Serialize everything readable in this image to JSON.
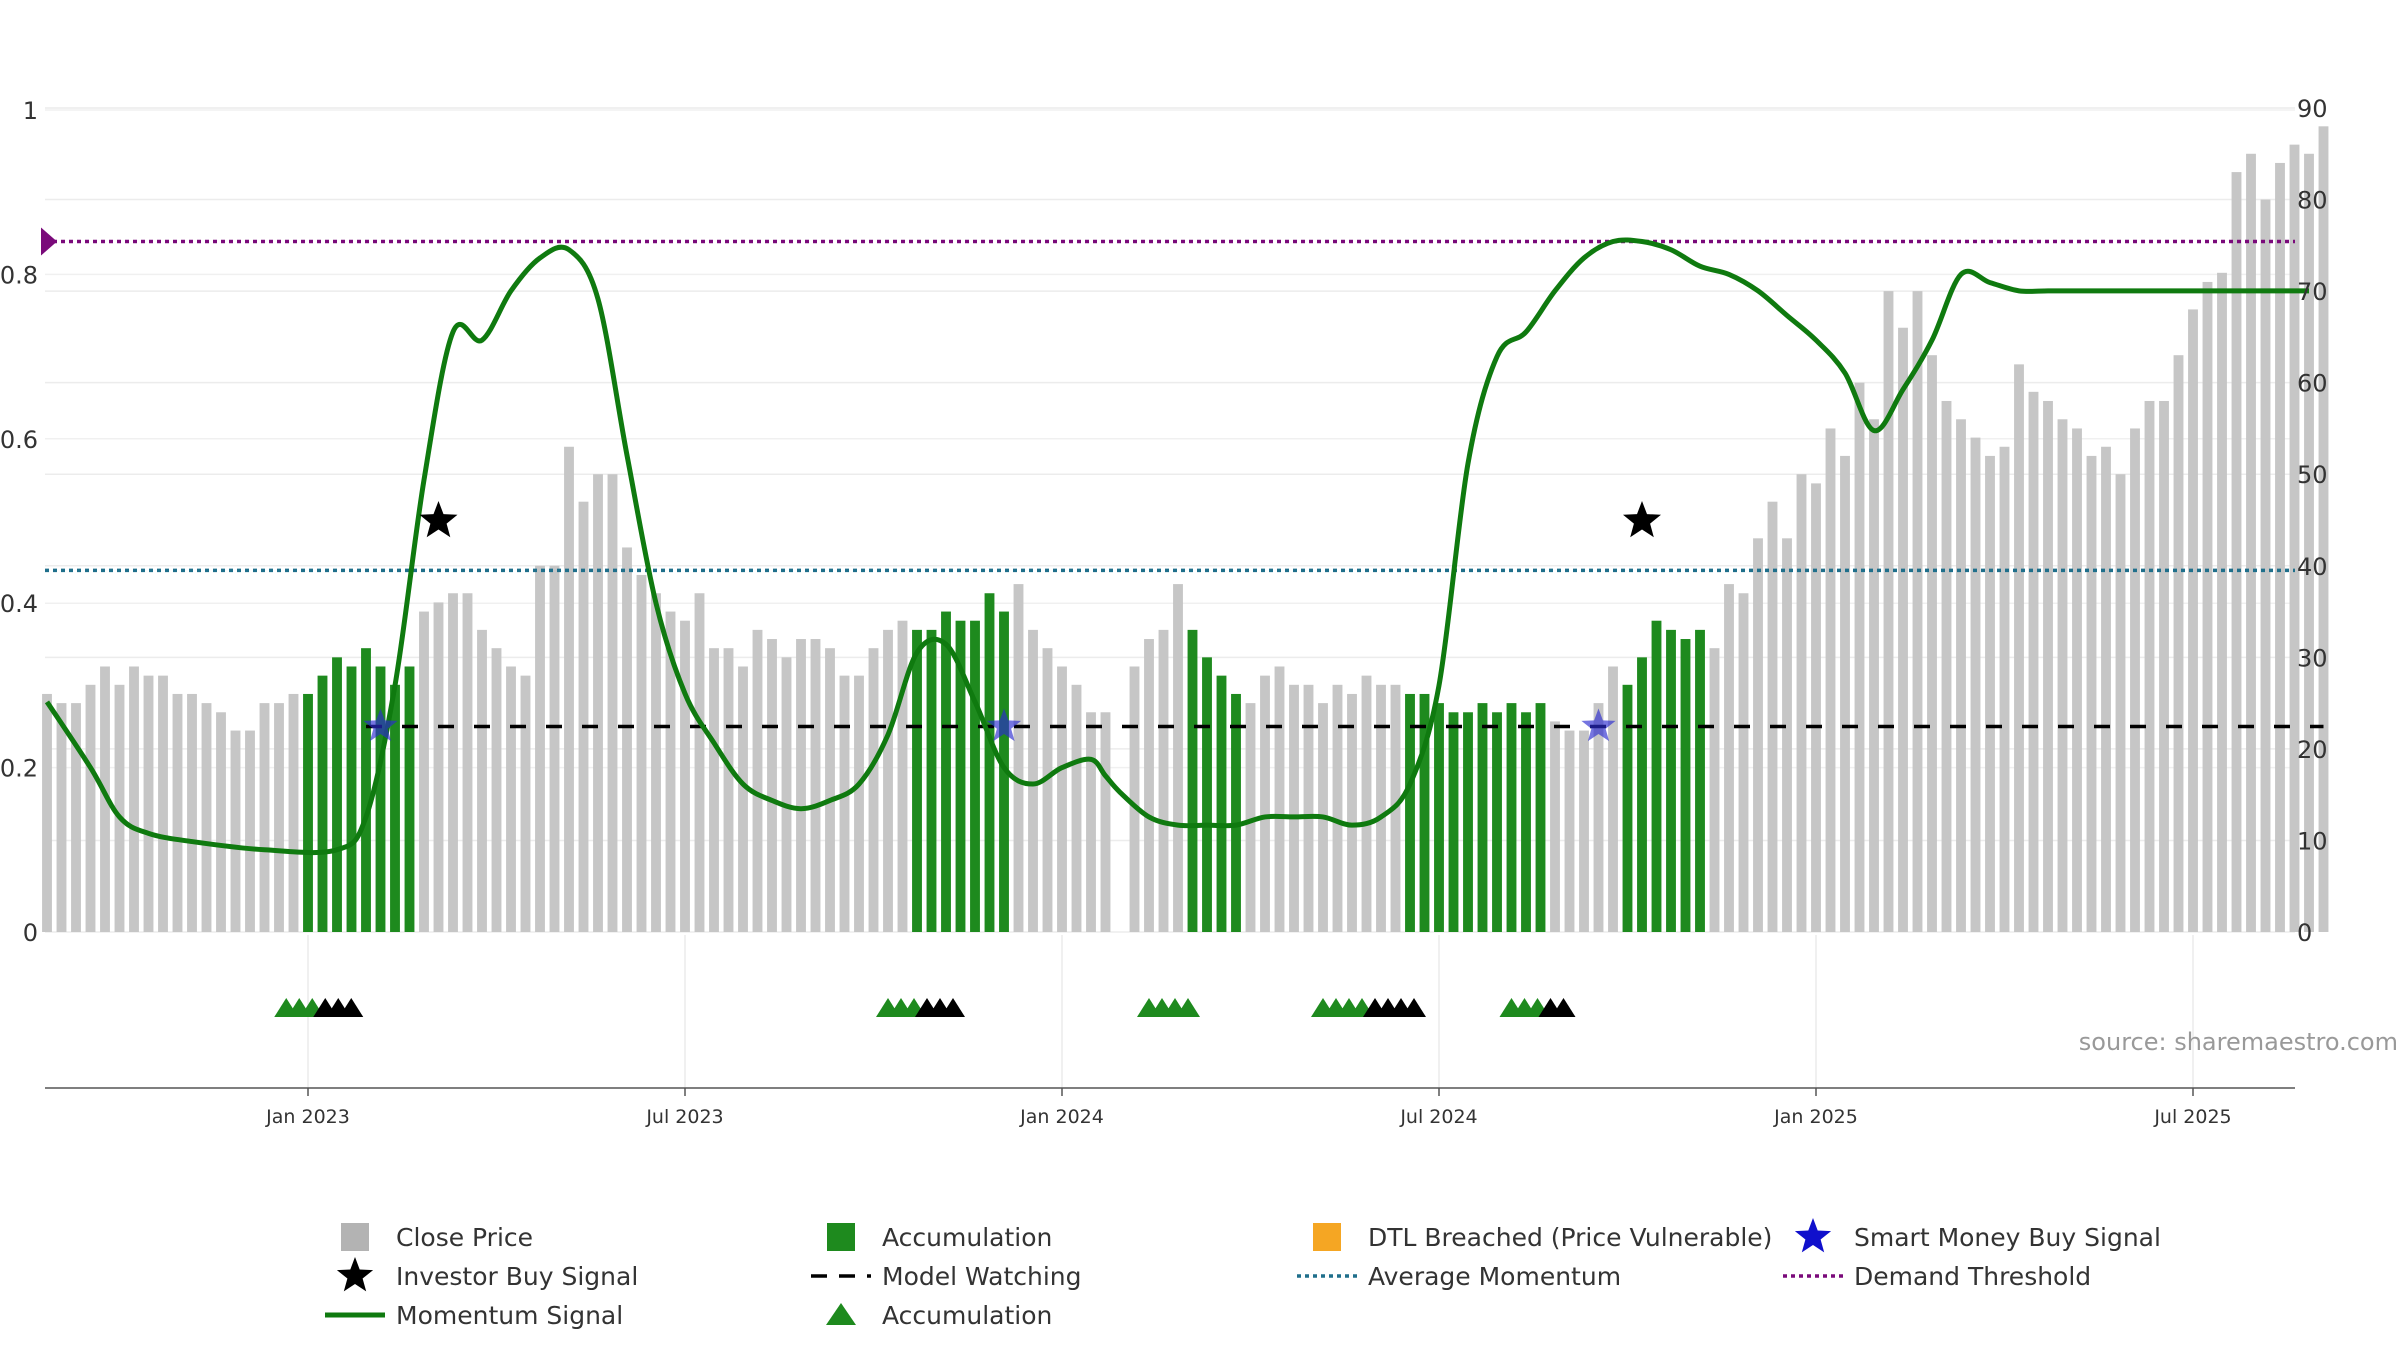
{
  "source_text": "source: sharemaestro.com",
  "legend": [
    {
      "label": "Close Price",
      "icon": "square-icon",
      "color": "#b3b3b3"
    },
    {
      "label": "Accumulation",
      "icon": "square-icon",
      "color": "#1e8a1e"
    },
    {
      "label": "DTL Breached (Price Vulnerable)",
      "icon": "square-icon",
      "color": "#f5a623"
    },
    {
      "label": "Smart Money Buy Signal",
      "icon": "star-icon",
      "color": "#1010cc"
    },
    {
      "label": "Investor Buy Signal",
      "icon": "star-icon",
      "color": "#000000"
    },
    {
      "label": "Model Watching",
      "icon": "dash-line-icon",
      "color": "#000000"
    },
    {
      "label": "Average Momentum",
      "icon": "dotted-line-icon",
      "color": "#1f6f8b"
    },
    {
      "label": "Demand Threshold",
      "icon": "dotted-line-icon",
      "color": "#7a0a7a"
    },
    {
      "label": "Momentum Signal",
      "icon": "solid-line-icon",
      "color": "#0f7a0f"
    },
    {
      "label": "Accumulation",
      "icon": "triangle-up-icon",
      "color": "#1e8a1e"
    }
  ],
  "chart_data": {
    "type": "bar",
    "x_tick_labels": [
      "Jan 2023",
      "Jul 2023",
      "Jan 2024",
      "Jul 2024",
      "Jan 2025",
      "Jul 2025"
    ],
    "x_tick_weeks": [
      18,
      44,
      70,
      96,
      122,
      148
    ],
    "left_axis": {
      "ticks": [
        0,
        0.2,
        0.4,
        0.6,
        0.8,
        1
      ],
      "tick_labels": [
        "0",
        "0.2",
        "0.4",
        "0.6",
        "0.8",
        "1"
      ],
      "ylim": [
        0,
        1
      ]
    },
    "right_axis": {
      "ticks": [
        0,
        10,
        20,
        30,
        40,
        50,
        60,
        70,
        80,
        90
      ],
      "tick_labels": [
        "0",
        "10",
        "20",
        "30",
        "40",
        "50",
        "60",
        "70",
        "80",
        "90"
      ],
      "ylim": [
        0,
        90
      ]
    },
    "grid": true,
    "legend_position": "bottom",
    "colors": {
      "close": "#c6c6c6",
      "accumulation": "#1e8a1e",
      "dtl": "#f9c877",
      "momentum": "#0f7a0f",
      "average": "#1f6f8b",
      "threshold": "#7a0a7a",
      "watching": "#000000",
      "smart_money": "#2b2bd0",
      "investor": "#000000"
    },
    "close_price": [
      26,
      25,
      25,
      27,
      29,
      27,
      29,
      28,
      28,
      26,
      26,
      25,
      24,
      22,
      22,
      25,
      25,
      26,
      26,
      28,
      30,
      29,
      31,
      29,
      27,
      29,
      35,
      36,
      37,
      37,
      33,
      31,
      29,
      28,
      40,
      40,
      53,
      47,
      50,
      50,
      42,
      39,
      37,
      35,
      34,
      37,
      31,
      31,
      29,
      33,
      32,
      30,
      32,
      32,
      31,
      28,
      28,
      31,
      33,
      34,
      33,
      33,
      35,
      34,
      34,
      37,
      35,
      38,
      33,
      31,
      29,
      27,
      24,
      24,
      null,
      29,
      32,
      33,
      38,
      33,
      30,
      28,
      26,
      25,
      28,
      29,
      27,
      27,
      25,
      27,
      26,
      28,
      27,
      27,
      26,
      26,
      25,
      24,
      24,
      25,
      24,
      25,
      24,
      25,
      23,
      22,
      22,
      25,
      29,
      27,
      30,
      34,
      33,
      32,
      33,
      31,
      38,
      37,
      43,
      47,
      43,
      50,
      49,
      55,
      52,
      60,
      56,
      70,
      66,
      70,
      63,
      58,
      56,
      54,
      52,
      53,
      62,
      59,
      58,
      56,
      55,
      52,
      53,
      50,
      55,
      58,
      58,
      63,
      68,
      71,
      72,
      83,
      85,
      80,
      84,
      86,
      85,
      88
    ],
    "bar_category": [
      "c",
      "c",
      "c",
      "c",
      "c",
      "c",
      "c",
      "c",
      "c",
      "c",
      "c",
      "c",
      "c",
      "c",
      "c",
      "c",
      "c",
      "c",
      "a",
      "a",
      "a",
      "a",
      "a",
      "a",
      "a",
      "a",
      "c",
      "c",
      "c",
      "c",
      "c",
      "c",
      "c",
      "c",
      "c",
      "c",
      "c",
      "c",
      "c",
      "c",
      "c",
      "c",
      "c",
      "c",
      "c",
      "c",
      "c",
      "c",
      "c",
      "c",
      "c",
      "c",
      "c",
      "c",
      "c",
      "c",
      "c",
      "c",
      "c",
      "c",
      "a",
      "a",
      "a",
      "a",
      "a",
      "a",
      "a",
      "c",
      "c",
      "c",
      "c",
      "c",
      "c",
      "c",
      "c",
      "c",
      "c",
      "c",
      "c",
      "a",
      "a",
      "a",
      "a",
      "c",
      "c",
      "c",
      "c",
      "c",
      "c",
      "c",
      "c",
      "c",
      "c",
      "c",
      "a",
      "a",
      "a",
      "a",
      "a",
      "a",
      "a",
      "a",
      "a",
      "a",
      "c",
      "c",
      "c",
      "c",
      "c",
      "a",
      "a",
      "a",
      "a",
      "a",
      "a",
      "c",
      "c",
      "c",
      "c",
      "c",
      "c",
      "c",
      "c",
      "c",
      "c",
      "c",
      "c",
      "c",
      "c",
      "c",
      "c",
      "c",
      "c",
      "c",
      "c",
      "c",
      "c",
      "c",
      "c",
      "c",
      "c",
      "c",
      "c",
      "c",
      "c",
      "c",
      "c",
      "c",
      "c",
      "c",
      "c",
      "c",
      "c",
      "c",
      "c",
      "c",
      "c",
      "c",
      "c",
      "d",
      "d",
      "d",
      "d",
      "d",
      "d",
      "d",
      "d"
    ],
    "momentum_series": {
      "x_weeks": [
        0,
        3,
        5,
        7,
        10,
        15,
        20,
        22,
        24,
        26,
        28,
        30,
        32,
        34,
        36,
        38,
        40,
        42,
        44,
        46,
        48,
        50,
        52,
        54,
        56,
        58,
        60,
        62,
        64,
        66,
        68,
        70,
        72,
        73,
        74,
        76,
        78,
        80,
        82,
        84,
        86,
        88,
        90,
        92,
        94,
        96,
        98,
        100,
        102,
        104,
        106,
        108,
        110,
        112,
        114,
        116,
        118,
        120,
        122,
        124,
        126,
        128,
        130,
        132,
        134,
        136,
        138,
        140,
        142,
        144,
        146,
        148,
        150,
        152,
        154,
        156
      ],
      "values": [
        0.28,
        0.2,
        0.14,
        0.12,
        0.11,
        0.1,
        0.1,
        0.14,
        0.3,
        0.55,
        0.73,
        0.72,
        0.78,
        0.82,
        0.83,
        0.77,
        0.58,
        0.4,
        0.29,
        0.23,
        0.18,
        0.16,
        0.15,
        0.16,
        0.18,
        0.24,
        0.34,
        0.35,
        0.28,
        0.2,
        0.18,
        0.2,
        0.21,
        0.19,
        0.17,
        0.14,
        0.13,
        0.13,
        0.13,
        0.14,
        0.14,
        0.14,
        0.13,
        0.14,
        0.18,
        0.3,
        0.57,
        0.7,
        0.73,
        0.78,
        0.82,
        0.84,
        0.84,
        0.83,
        0.81,
        0.8,
        0.78,
        0.75,
        0.72,
        0.68,
        0.61,
        0.66,
        0.72,
        0.8,
        0.79,
        0.78,
        0.78,
        0.78,
        0.78,
        0.78,
        0.78,
        0.78,
        0.78,
        0.78,
        0.78,
        0.78
      ]
    },
    "average_momentum": 0.44,
    "demand_threshold": 0.84,
    "model_watching_level": 0.25,
    "model_watching_x_range": [
      22,
      157
    ],
    "investor_buy_signals": [
      {
        "week": 27,
        "value": 0.5
      },
      {
        "week": 110,
        "value": 0.5
      }
    ],
    "smart_money_buy_signals": [
      {
        "week": 23,
        "value": 0.25
      },
      {
        "week": 66,
        "value": 0.25
      },
      {
        "week": 107,
        "value": 0.25
      }
    ],
    "accumulation_triangles": [
      {
        "week_start": 16.5,
        "count": 6,
        "colors": [
          "g",
          "g",
          "g",
          "k",
          "k",
          "k"
        ]
      },
      {
        "week_start": 58,
        "count": 6,
        "colors": [
          "g",
          "g",
          "g",
          "k",
          "k",
          "k"
        ]
      },
      {
        "week_start": 76,
        "count": 4,
        "colors": [
          "g",
          "g",
          "g",
          "g"
        ]
      },
      {
        "week_start": 88,
        "count": 8,
        "colors": [
          "g",
          "g",
          "g",
          "g",
          "k",
          "k",
          "k",
          "k"
        ]
      },
      {
        "week_start": 101,
        "count": 5,
        "colors": [
          "g",
          "g",
          "g",
          "k",
          "k"
        ]
      }
    ]
  }
}
